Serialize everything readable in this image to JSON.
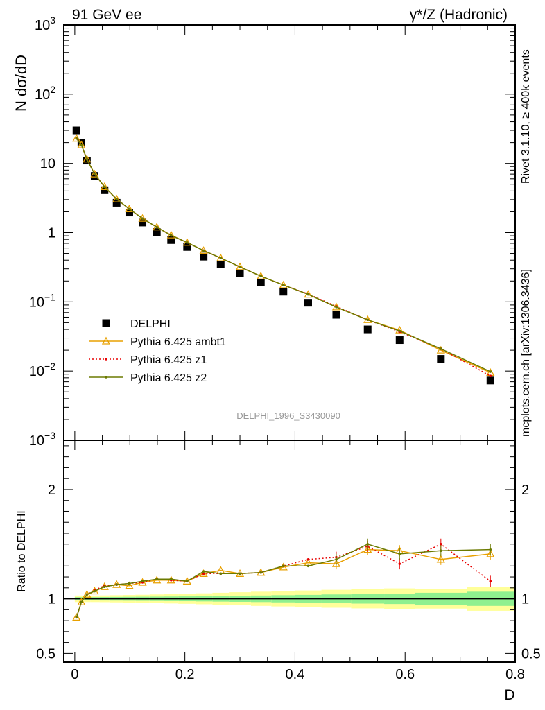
{
  "header": {
    "left": "91 GeV ee",
    "right": "γ*/Z (Hadronic)"
  },
  "side_text": {
    "top": "Rivet 3.1.10, ≥ 400k events",
    "bottom": "mcplots.cern.ch [arXiv:1306.3436]"
  },
  "watermark": "DELPHI_1996_S3430090",
  "colors": {
    "data": "#000000",
    "ambt1": "#e8a000",
    "z1": "#e80000",
    "z2": "#6b7a00",
    "band_inner": "#8ff08f",
    "band_outer": "#ffff99"
  },
  "chart_data": [
    {
      "type": "scatter",
      "panel": "main",
      "ylabel": "N dσ/dD",
      "yscale": "log",
      "ylim": [
        0.001,
        1000
      ],
      "xlim": [
        -0.02,
        0.8
      ],
      "yticks": [
        {
          "base": "10",
          "exp": "3"
        },
        {
          "base": "10",
          "exp": "2"
        },
        {
          "base": "10",
          "exp": ""
        },
        {
          "base": "1",
          "exp": ""
        },
        {
          "base": "10",
          "exp": "−1"
        },
        {
          "base": "10",
          "exp": "−2"
        },
        {
          "base": "10",
          "exp": "−3"
        }
      ],
      "legend_position": "bottom-left",
      "x": [
        0.003,
        0.012,
        0.022,
        0.036,
        0.054,
        0.076,
        0.099,
        0.123,
        0.149,
        0.175,
        0.204,
        0.234,
        0.265,
        0.3,
        0.338,
        0.379,
        0.424,
        0.475,
        0.532,
        0.59,
        0.665,
        0.755
      ],
      "series": [
        {
          "name": "DELPHI",
          "style": "data",
          "values": [
            30,
            20,
            11,
            6.6,
            4.1,
            2.7,
            1.95,
            1.4,
            1.02,
            0.78,
            0.62,
            0.45,
            0.35,
            0.26,
            0.19,
            0.14,
            0.097,
            0.065,
            0.04,
            0.028,
            0.015,
            0.0073
          ]
        },
        {
          "name": "Pythia 6.425 ambt1",
          "style": "ambt1",
          "values": [
            23,
            18.5,
            11.5,
            7,
            4.6,
            3.05,
            2.2,
            1.6,
            1.2,
            0.92,
            0.72,
            0.55,
            0.43,
            0.32,
            0.235,
            0.175,
            0.128,
            0.084,
            0.055,
            0.039,
            0.02,
            0.0095
          ]
        },
        {
          "name": "Pythia 6.425 z1",
          "style": "z1",
          "values": [
            23,
            18.5,
            11.5,
            7,
            4.6,
            3.05,
            2.2,
            1.6,
            1.2,
            0.91,
            0.72,
            0.55,
            0.43,
            0.32,
            0.235,
            0.175,
            0.13,
            0.086,
            0.055,
            0.037,
            0.021,
            0.0085
          ]
        },
        {
          "name": "Pythia 6.425 z2",
          "style": "z2",
          "values": [
            23,
            18.5,
            11.5,
            7,
            4.6,
            3.05,
            2.2,
            1.6,
            1.2,
            0.91,
            0.72,
            0.55,
            0.43,
            0.32,
            0.235,
            0.175,
            0.128,
            0.084,
            0.055,
            0.038,
            0.021,
            0.0098
          ]
        }
      ]
    },
    {
      "type": "line",
      "panel": "ratio",
      "ylabel": "Ratio to DELPHI",
      "xlabel": "D",
      "ylim": [
        0.42,
        2.45
      ],
      "yticks": [
        {
          "value": 0.5,
          "label": "0.5"
        },
        {
          "value": 1,
          "label": "1"
        },
        {
          "value": 2,
          "label": "2"
        }
      ],
      "xticks": [
        {
          "value": 0,
          "label": "0"
        },
        {
          "value": 0.2,
          "label": "0.2"
        },
        {
          "value": 0.4,
          "label": "0.4"
        },
        {
          "value": 0.6,
          "label": "0.6"
        },
        {
          "value": 0.8,
          "label": "0.8"
        }
      ],
      "x": [
        0.003,
        0.012,
        0.022,
        0.036,
        0.054,
        0.076,
        0.099,
        0.123,
        0.149,
        0.175,
        0.204,
        0.234,
        0.265,
        0.3,
        0.338,
        0.379,
        0.424,
        0.475,
        0.532,
        0.59,
        0.665,
        0.755
      ],
      "bin_edges": [
        0,
        0.006,
        0.017,
        0.028,
        0.045,
        0.063,
        0.088,
        0.11,
        0.136,
        0.162,
        0.188,
        0.22,
        0.25,
        0.28,
        0.32,
        0.357,
        0.4,
        0.448,
        0.502,
        0.562,
        0.618,
        0.712,
        0.8
      ],
      "band_inner": [
        0.015,
        0.015,
        0.015,
        0.015,
        0.016,
        0.017,
        0.018,
        0.019,
        0.02,
        0.021,
        0.022,
        0.024,
        0.026,
        0.028,
        0.03,
        0.033,
        0.036,
        0.04,
        0.044,
        0.048,
        0.055,
        0.065
      ],
      "band_outer": [
        0.03,
        0.03,
        0.03,
        0.03,
        0.031,
        0.033,
        0.035,
        0.037,
        0.04,
        0.043,
        0.046,
        0.05,
        0.055,
        0.06,
        0.065,
        0.07,
        0.076,
        0.082,
        0.088,
        0.095,
        0.09,
        0.11
      ],
      "series": [
        {
          "name": "Pythia 6.425 ambt1",
          "style": "ambt1",
          "values": [
            0.83,
            0.97,
            1.04,
            1.07,
            1.11,
            1.13,
            1.12,
            1.15,
            1.17,
            1.17,
            1.16,
            1.23,
            1.26,
            1.23,
            1.24,
            1.29,
            1.33,
            1.32,
            1.45,
            1.44,
            1.36,
            1.41
          ]
        },
        {
          "name": "Pythia 6.425 z1",
          "style": "z1",
          "values": [
            0.83,
            0.97,
            1.04,
            1.08,
            1.12,
            1.13,
            1.14,
            1.15,
            1.18,
            1.17,
            1.16,
            1.23,
            1.23,
            1.23,
            1.24,
            1.3,
            1.36,
            1.38,
            1.48,
            1.32,
            1.5,
            1.16
          ]
        },
        {
          "name": "Pythia 6.425 z2",
          "style": "z2",
          "values": [
            0.83,
            0.97,
            1.04,
            1.07,
            1.11,
            1.13,
            1.14,
            1.16,
            1.18,
            1.18,
            1.16,
            1.25,
            1.23,
            1.23,
            1.24,
            1.3,
            1.3,
            1.36,
            1.5,
            1.41,
            1.44,
            1.45
          ]
        }
      ]
    }
  ]
}
